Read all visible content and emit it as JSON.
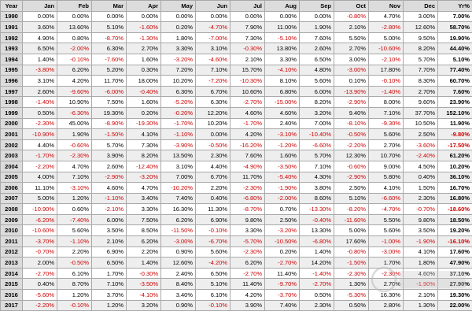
{
  "colors": {
    "negative": "#cc0000",
    "positive": "#000000",
    "header_bg": "#dcdcdc"
  },
  "table": {
    "headers": [
      "Year",
      "Jan",
      "Feb",
      "Mar",
      "Apr",
      "May",
      "Jun",
      "Jul",
      "Aug",
      "Sep",
      "Oct",
      "Nov",
      "Dec",
      "Yr%"
    ],
    "rows": [
      [
        "1990",
        "0.00%",
        "0.00%",
        "0.00%",
        "0.00%",
        "0.00%",
        "0.00%",
        "0.00%",
        "0.00%",
        "0.00%",
        "-0.80%",
        "4.70%",
        "3.00%",
        "7.00%"
      ],
      [
        "1991",
        "3.60%",
        "13.60%",
        "5.10%",
        "-1.60%",
        "0.20%",
        "-4.70%",
        "7.90%",
        "11.00%",
        "1.90%",
        "2.10%",
        "-2.80%",
        "12.60%",
        "58.70%"
      ],
      [
        "1992",
        "4.90%",
        "0.80%",
        "-8.70%",
        "-1.30%",
        "1.80%",
        "-7.00%",
        "7.30%",
        "-5.10%",
        "7.60%",
        "5.50%",
        "5.00%",
        "9.50%",
        "19.90%"
      ],
      [
        "1993",
        "6.50%",
        "-2.00%",
        "6.30%",
        "2.70%",
        "3.30%",
        "3.10%",
        "-0.30%",
        "13.80%",
        "2.60%",
        "2.70%",
        "-10.60%",
        "8.20%",
        "44.40%"
      ],
      [
        "1994",
        "1.40%",
        "-0.10%",
        "-7.60%",
        "1.60%",
        "-3.20%",
        "-4.60%",
        "2.10%",
        "3.30%",
        "6.50%",
        "3.00%",
        "-2.10%",
        "5.70%",
        "5.10%"
      ],
      [
        "1995",
        "-3.80%",
        "6.20%",
        "5.20%",
        "0.30%",
        "7.20%",
        "7.10%",
        "15.70%",
        "-4.10%",
        "4.80%",
        "-3.00%",
        "17.80%",
        "7.70%",
        "77.40%"
      ],
      [
        "1996",
        "3.10%",
        "4.20%",
        "11.70%",
        "18.00%",
        "10.20%",
        "-7.20%",
        "-10.30%",
        "8.10%",
        "5.60%",
        "0.10%",
        "-0.10%",
        "8.30%",
        "60.70%"
      ],
      [
        "1997",
        "2.60%",
        "-9.60%",
        "-6.00%",
        "-0.40%",
        "6.30%",
        "6.70%",
        "10.60%",
        "6.80%",
        "6.00%",
        "-13.90%",
        "-1.40%",
        "2.70%",
        "7.60%"
      ],
      [
        "1998",
        "-1.40%",
        "10.90%",
        "7.50%",
        "1.60%",
        "-5.20%",
        "6.30%",
        "-2.70%",
        "-15.00%",
        "8.20%",
        "-2.90%",
        "8.00%",
        "9.60%",
        "23.90%"
      ],
      [
        "1999",
        "0.50%",
        "-6.30%",
        "19.30%",
        "0.20%",
        "-0.20%",
        "12.20%",
        "4.60%",
        "4.60%",
        "3.20%",
        "9.40%",
        "7.10%",
        "37.70%",
        "152.10%"
      ],
      [
        "2000",
        "-2.30%",
        "45.00%",
        "-8.90%",
        "-19.30%",
        "-1.70%",
        "10.20%",
        "-1.70%",
        "2.40%",
        "7.00%",
        "-8.10%",
        "-9.30%",
        "10.50%",
        "11.90%"
      ],
      [
        "2001",
        "-10.90%",
        "1.90%",
        "-1.50%",
        "4.10%",
        "-1.10%",
        "0.00%",
        "4.20%",
        "-3.10%",
        "-10.40%",
        "-0.50%",
        "5.60%",
        "2.50%",
        "-9.80%"
      ],
      [
        "2002",
        "4.40%",
        "-0.60%",
        "5.70%",
        "7.30%",
        "-3.90%",
        "-0.50%",
        "-16.20%",
        "-1.20%",
        "-6.60%",
        "-2.20%",
        "2.70%",
        "-3.60%",
        "-17.50%"
      ],
      [
        "2003",
        "-1.70%",
        "-2.30%",
        "3.90%",
        "8.20%",
        "13.50%",
        "2.30%",
        "7.60%",
        "1.60%",
        "5.70%",
        "12.30%",
        "10.70%",
        "-2.40%",
        "61.20%"
      ],
      [
        "2004",
        "-2.20%",
        "4.70%",
        "2.60%",
        "-12.40%",
        "3.10%",
        "4.40%",
        "-4.90%",
        "-3.50%",
        "7.10%",
        "-0.60%",
        "9.00%",
        "4.50%",
        "10.20%"
      ],
      [
        "2005",
        "4.00%",
        "7.10%",
        "-2.90%",
        "-3.20%",
        "7.00%",
        "6.70%",
        "11.70%",
        "-5.40%",
        "4.30%",
        "-2.90%",
        "5.80%",
        "0.40%",
        "36.10%"
      ],
      [
        "2006",
        "11.10%",
        "-3.10%",
        "4.60%",
        "4.70%",
        "-10.20%",
        "2.20%",
        "-2.30%",
        "-1.90%",
        "3.80%",
        "2.50%",
        "4.10%",
        "1.50%",
        "16.70%"
      ],
      [
        "2007",
        "5.00%",
        "1.20%",
        "-1.10%",
        "3.40%",
        "7.40%",
        "0.40%",
        "-6.80%",
        "-2.00%",
        "8.60%",
        "5.10%",
        "-6.60%",
        "2.30%",
        "16.80%"
      ],
      [
        "2008",
        "-10.90%",
        "0.60%",
        "-2.10%",
        "3.30%",
        "16.30%",
        "11.30%",
        "-8.70%",
        "0.70%",
        "-13.30%",
        "-8.20%",
        "-4.70%",
        "-0.70%",
        "-18.60%"
      ],
      [
        "2009",
        "-6.20%",
        "-7.40%",
        "6.00%",
        "7.50%",
        "6.20%",
        "6.90%",
        "9.80%",
        "2.50%",
        "-0.40%",
        "-11.60%",
        "5.50%",
        "9.80%",
        "18.50%"
      ],
      [
        "2010",
        "-10.60%",
        "5.60%",
        "3.50%",
        "8.50%",
        "-11.50%",
        "-0.10%",
        "3.30%",
        "-3.20%",
        "13.30%",
        "5.00%",
        "5.60%",
        "3.50%",
        "19.20%"
      ],
      [
        "2011",
        "-3.70%",
        "-1.10%",
        "2.10%",
        "6.20%",
        "-3.00%",
        "-6.70%",
        "-5.70%",
        "-10.50%",
        "-6.80%",
        "17.60%",
        "-1.00%",
        "-1.90%",
        "-16.10%"
      ],
      [
        "2012",
        "-0.70%",
        "2.20%",
        "6.90%",
        "2.20%",
        "0.90%",
        "5.60%",
        "-2.30%",
        "0.20%",
        "1.40%",
        "-0.80%",
        "-3.00%",
        "4.10%",
        "17.60%"
      ],
      [
        "2013",
        "2.00%",
        "-0.50%",
        "6.50%",
        "1.40%",
        "12.60%",
        "-4.20%",
        "6.20%",
        "-2.70%",
        "14.20%",
        "-1.50%",
        "1.70%",
        "1.80%",
        "47.90%"
      ],
      [
        "2014",
        "-2.70%",
        "6.10%",
        "1.70%",
        "-0.30%",
        "2.40%",
        "6.50%",
        "-2.70%",
        "11.40%",
        "-1.40%",
        "-2.30%",
        "-2.30%",
        "4.60%",
        "37.10%"
      ],
      [
        "2015",
        "0.40%",
        "8.70%",
        "7.10%",
        "-3.50%",
        "8.40%",
        "5.10%",
        "11.40%",
        "-9.70%",
        "-2.70%",
        "1.30%",
        "2.70%",
        "-1.90%",
        "27.90%"
      ],
      [
        "2016",
        "-5.60%",
        "1.20%",
        "3.70%",
        "-4.10%",
        "3.40%",
        "6.10%",
        "4.20%",
        "-3.70%",
        "0.50%",
        "-5.30%",
        "16.30%",
        "2.10%",
        "19.30%"
      ],
      [
        "2017",
        "-2.20%",
        "-0.10%",
        "1.20%",
        "3.20%",
        "0.90%",
        "-0.10%",
        "3.90%",
        "7.40%",
        "2.30%",
        "0.50%",
        "2.80%",
        "1.30%",
        "22.00%"
      ]
    ]
  }
}
